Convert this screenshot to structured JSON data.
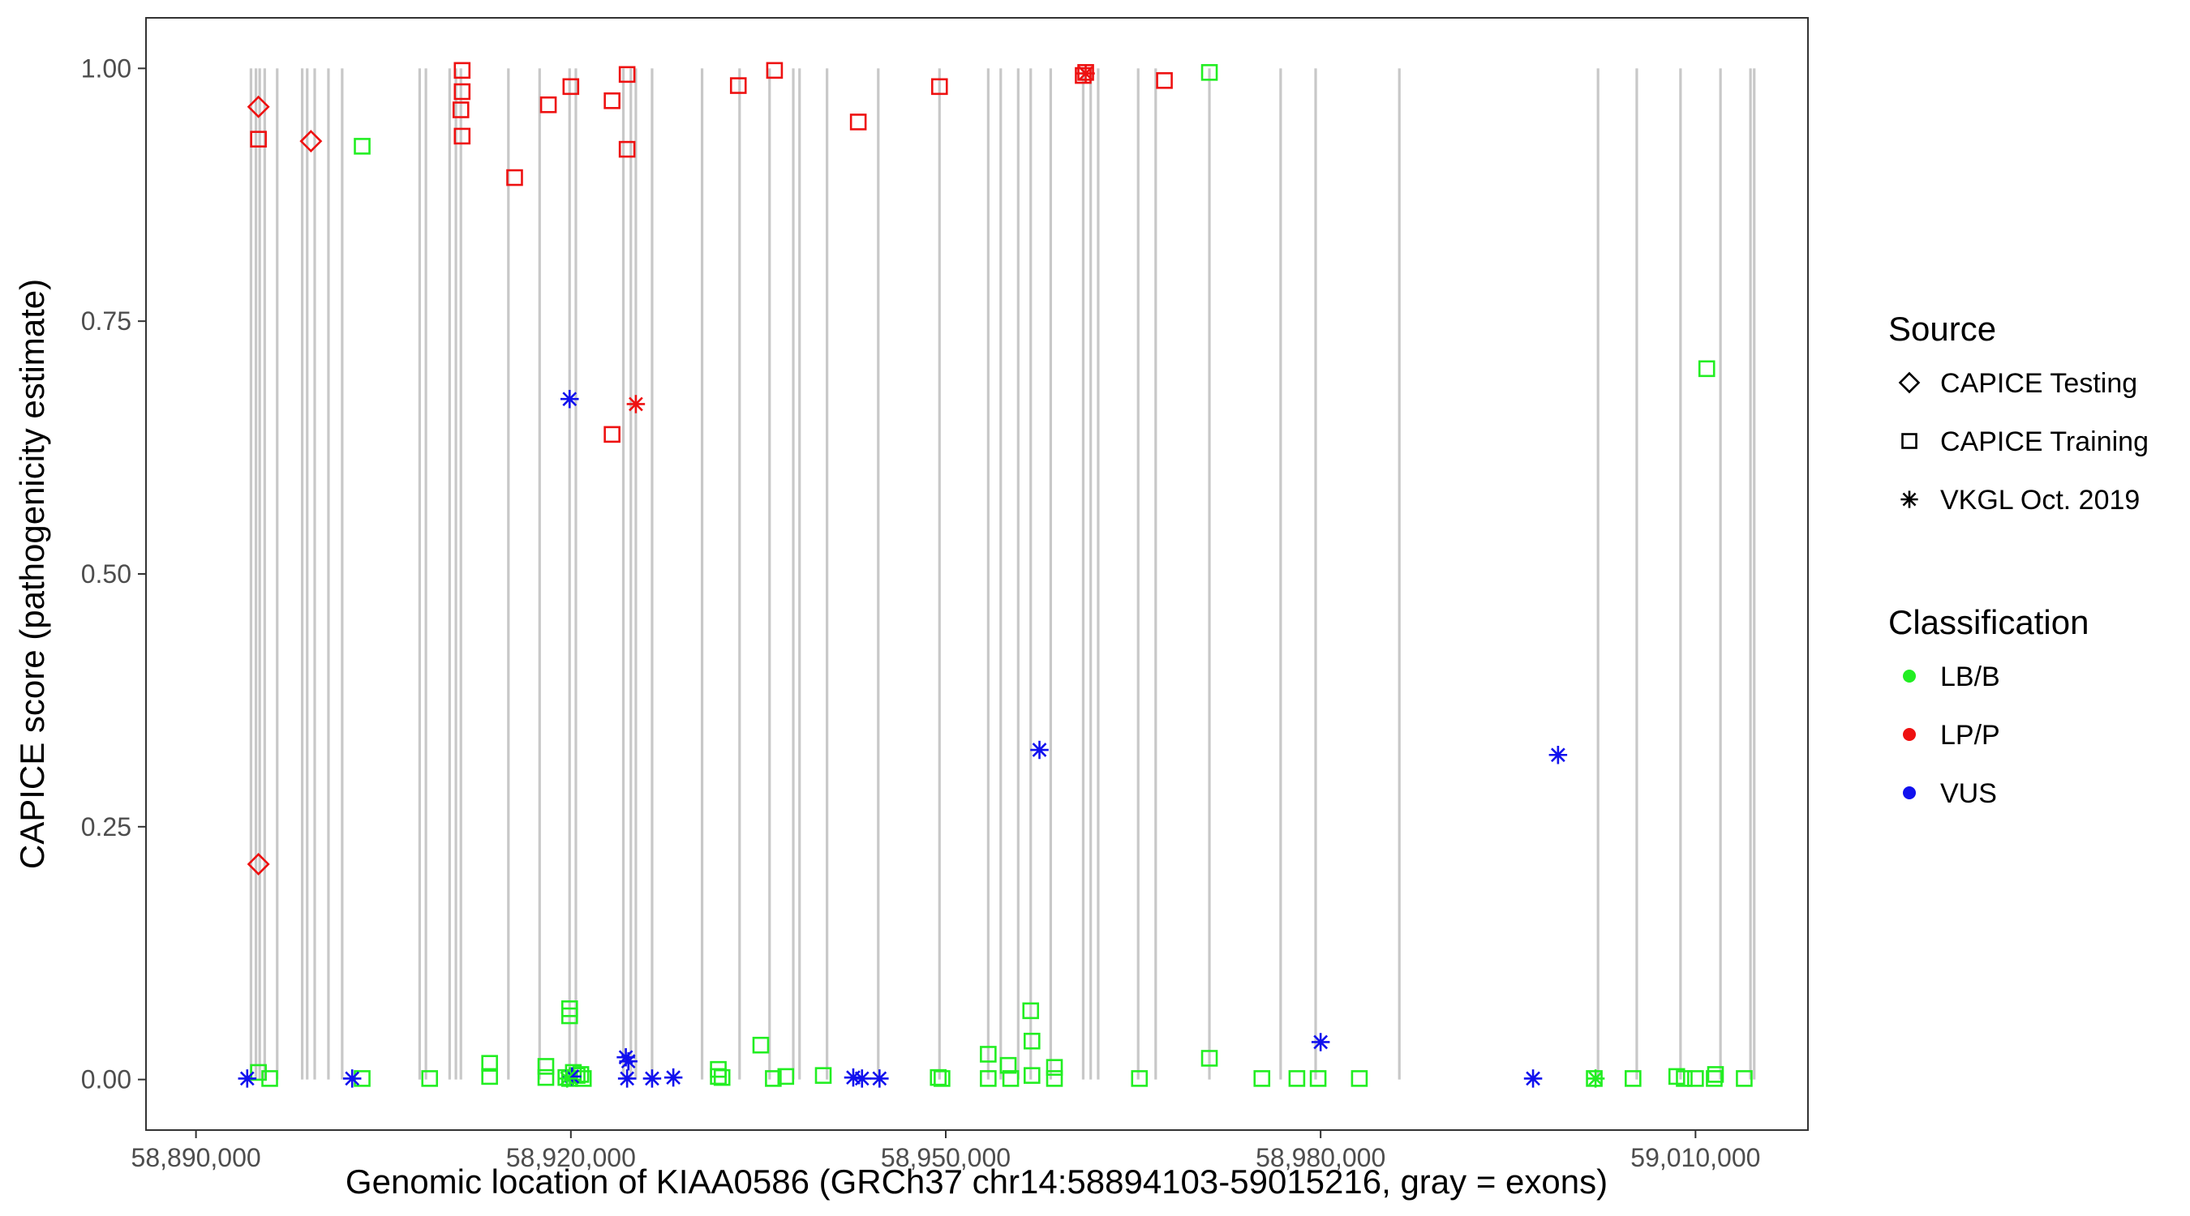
{
  "chart_data": {
    "type": "scatter",
    "xlabel": "Genomic location of KIAA0586 (GRCh37 chr14:58894103-59015216, gray = exons)",
    "ylabel": "CAPICE score (pathogenicity estimate)",
    "xlim": [
      58886000,
      59019000
    ],
    "ylim": [
      -0.05,
      1.05
    ],
    "x_ticks": [
      58890000,
      58920000,
      58950000,
      58980000,
      59010000
    ],
    "x_tick_labels": [
      "58,890,000",
      "58,920,000",
      "58,950,000",
      "58,980,000",
      "59,010,000"
    ],
    "y_ticks": [
      0.0,
      0.25,
      0.5,
      0.75,
      1.0
    ],
    "y_tick_labels": [
      "0.00",
      "0.25",
      "0.50",
      "0.75",
      "1.00"
    ],
    "grid": false,
    "exons": [
      58894400,
      58894800,
      58895100,
      58895500,
      58896500,
      58898500,
      58898900,
      58899500,
      58900600,
      58901700,
      58907900,
      58908400,
      58910300,
      58910800,
      58911200,
      58915000,
      58917500,
      58919900,
      58920400,
      58924200,
      58924800,
      58925200,
      58926500,
      58930500,
      58933500,
      58935900,
      58937800,
      58938300,
      58940500,
      58944600,
      58949500,
      58953400,
      58954400,
      58955800,
      58956800,
      58958400,
      58961000,
      58961600,
      58962200,
      58965400,
      58966800,
      58971100,
      58976800,
      58979600,
      58986300,
      59002200,
      59005300,
      59008800,
      59012000,
      59014400,
      59014700
    ],
    "exon_color": "#c8c8c8",
    "legend": {
      "source_title": "Source",
      "source_entries": [
        {
          "label": "CAPICE Testing",
          "shape": "diamond"
        },
        {
          "label": "CAPICE Training",
          "shape": "square"
        },
        {
          "label": "VKGL Oct. 2019",
          "shape": "asterisk"
        }
      ],
      "classification_title": "Classification",
      "classification_entries": [
        {
          "label": "LB/B",
          "color": "#22ee22"
        },
        {
          "label": "LP/P",
          "color": "#ee1111"
        },
        {
          "label": "VUS",
          "color": "#1111ee"
        }
      ],
      "placement": "right"
    },
    "series": [
      {
        "source": "CAPICE Testing",
        "classification": "LP/P",
        "points": [
          [
            58895000,
            0.962
          ],
          [
            58895000,
            0.213
          ],
          [
            58899200,
            0.928
          ]
        ]
      },
      {
        "source": "CAPICE Training",
        "classification": "LP/P",
        "points": [
          [
            58895000,
            0.93
          ],
          [
            58911300,
            0.998
          ],
          [
            58911300,
            0.977
          ],
          [
            58911200,
            0.959
          ],
          [
            58911300,
            0.933
          ],
          [
            58915500,
            0.892
          ],
          [
            58918200,
            0.964
          ],
          [
            58920000,
            0.982
          ],
          [
            58923300,
            0.968
          ],
          [
            58924500,
            0.994
          ],
          [
            58924500,
            0.92
          ],
          [
            58923300,
            0.638
          ],
          [
            58933400,
            0.983
          ],
          [
            58936300,
            0.998
          ],
          [
            58943000,
            0.947
          ],
          [
            58949500,
            0.982
          ],
          [
            58961000,
            0.993
          ],
          [
            58961200,
            0.996
          ],
          [
            58967500,
            0.988
          ]
        ]
      },
      {
        "source": "CAPICE Training",
        "classification": "LB/B",
        "points": [
          [
            58895000,
            0.007
          ],
          [
            58895900,
            0.001
          ],
          [
            58903300,
            0.923
          ],
          [
            58903300,
            0.001
          ],
          [
            58908700,
            0.001
          ],
          [
            58913500,
            0.016
          ],
          [
            58913500,
            0.003
          ],
          [
            58918000,
            0.013
          ],
          [
            58918000,
            0.002
          ],
          [
            58919600,
            0.002
          ],
          [
            58919900,
            0.07
          ],
          [
            58919900,
            0.063
          ],
          [
            58919900,
            0.001
          ],
          [
            58920200,
            0.007
          ],
          [
            58920500,
            0.004
          ],
          [
            58920800,
            0.005
          ],
          [
            58921000,
            0.001
          ],
          [
            58931800,
            0.01
          ],
          [
            58931800,
            0.003
          ],
          [
            58932100,
            0.002
          ],
          [
            58935200,
            0.034
          ],
          [
            58936200,
            0.001
          ],
          [
            58937200,
            0.003
          ],
          [
            58940200,
            0.004
          ],
          [
            58949400,
            0.002
          ],
          [
            58949700,
            0.001
          ],
          [
            58953400,
            0.025
          ],
          [
            58953400,
            0.001
          ],
          [
            58955000,
            0.014
          ],
          [
            58955200,
            0.001
          ],
          [
            58956800,
            0.068
          ],
          [
            58956900,
            0.038
          ],
          [
            58956900,
            0.004
          ],
          [
            58958700,
            0.012
          ],
          [
            58958700,
            0.001
          ],
          [
            58965500,
            0.001
          ],
          [
            58971100,
            0.996
          ],
          [
            58971100,
            0.021
          ],
          [
            58975300,
            0.001
          ],
          [
            58978100,
            0.001
          ],
          [
            58979800,
            0.001
          ],
          [
            58983100,
            0.001
          ],
          [
            59001900,
            0.001
          ],
          [
            59005000,
            0.001
          ],
          [
            59008500,
            0.003
          ],
          [
            59009100,
            0.001
          ],
          [
            59010000,
            0.001
          ],
          [
            59010900,
            0.703
          ],
          [
            59011600,
            0.005
          ],
          [
            59011500,
            0.001
          ],
          [
            59013900,
            0.001
          ]
        ]
      },
      {
        "source": "VKGL Oct. 2019",
        "classification": "LP/P",
        "points": [
          [
            58925200,
            0.668
          ],
          [
            58961200,
            0.995
          ]
        ]
      },
      {
        "source": "VKGL Oct. 2019",
        "classification": "VUS",
        "points": [
          [
            58894100,
            0.001
          ],
          [
            58902500,
            0.001
          ],
          [
            58919900,
            0.673
          ],
          [
            58920100,
            0.003
          ],
          [
            58924400,
            0.022
          ],
          [
            58924600,
            0.018
          ],
          [
            58924500,
            0.001
          ],
          [
            58926500,
            0.001
          ],
          [
            58928200,
            0.002
          ],
          [
            58942600,
            0.002
          ],
          [
            58943300,
            0.001
          ],
          [
            58944700,
            0.001
          ],
          [
            58957500,
            0.326
          ],
          [
            58980000,
            0.037
          ],
          [
            58997000,
            0.001
          ],
          [
            58999000,
            0.321
          ]
        ]
      },
      {
        "source": "VKGL Oct. 2019",
        "classification": "LB/B",
        "points": [
          [
            58919700,
            0.001
          ],
          [
            59002000,
            0.001
          ]
        ]
      }
    ]
  }
}
